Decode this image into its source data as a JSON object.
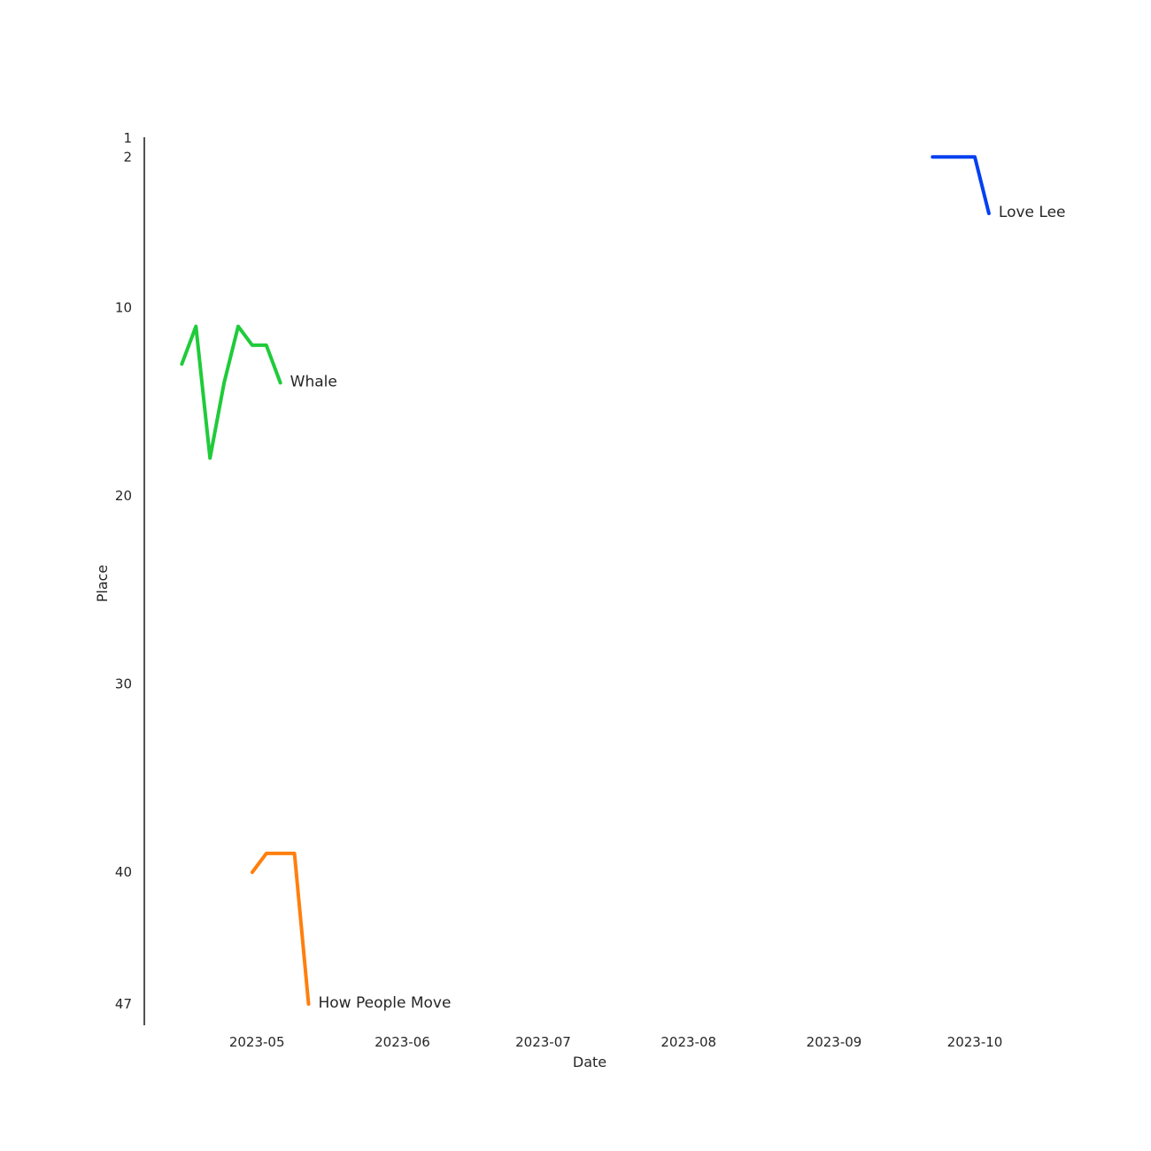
{
  "chart_data": {
    "type": "line",
    "title": "",
    "xlabel": "Date",
    "ylabel": "Place",
    "y_inverted": true,
    "grid": false,
    "legend": "none",
    "x_type": "date",
    "xlim": [
      "2023-04-07",
      "2023-10-31"
    ],
    "ylim": [
      1,
      47
    ],
    "x_ticks": [
      "2023-05",
      "2023-06",
      "2023-07",
      "2023-08",
      "2023-09",
      "2023-10"
    ],
    "y_ticks": [
      1,
      2,
      10,
      20,
      30,
      40,
      47
    ],
    "series": [
      {
        "name": "Whale",
        "color": "#1fcb3a",
        "x": [
          "2023-04-15",
          "2023-04-18",
          "2023-04-21",
          "2023-04-24",
          "2023-04-27",
          "2023-04-30",
          "2023-05-03",
          "2023-05-06"
        ],
        "y": [
          13,
          11,
          18,
          14,
          11,
          12,
          12,
          14
        ]
      },
      {
        "name": "How People Move",
        "color": "#ff7f0e",
        "x": [
          "2023-04-30",
          "2023-05-03",
          "2023-05-06",
          "2023-05-09",
          "2023-05-12"
        ],
        "y": [
          40,
          39,
          39,
          39,
          47
        ]
      },
      {
        "name": "Love Lee",
        "color": "#0340f0",
        "x": [
          "2023-09-22",
          "2023-09-25",
          "2023-09-28",
          "2023-10-01",
          "2023-10-04"
        ],
        "y": [
          2,
          2,
          2,
          2,
          5
        ]
      }
    ]
  }
}
